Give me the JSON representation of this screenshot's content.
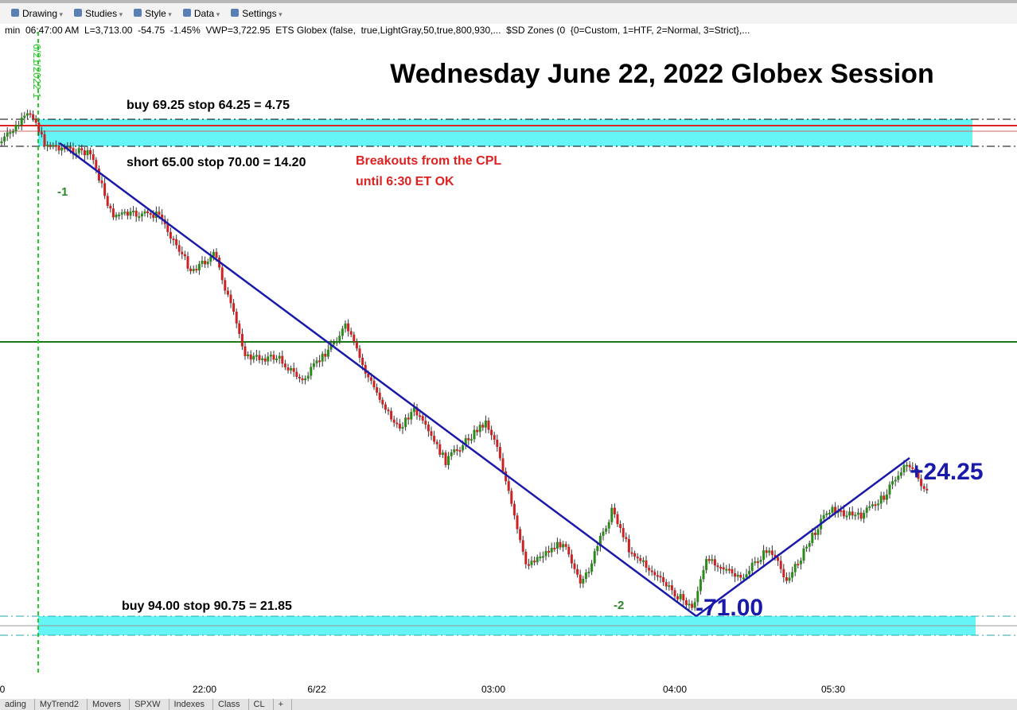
{
  "toolbar": {
    "items": [
      "Drawing",
      "Studies",
      "Style",
      "Data",
      "Settings"
    ]
  },
  "info_line": "min  06:47:00 AM  L=3,713.00  -54.75  -1.45%  VWP=3,722.95  ETS Globex (false,  true,LightGray,50,true,800,930,...  $SD Zones (0  {0=Custom, 1=HTF, 2=Normal, 3=Strict},...",
  "chart": {
    "title": "Wednesday June 22, 2022 Globex Session",
    "date_marker": "6/21/2022 1",
    "annotations": {
      "buy_top": "buy 69.25 stop 64.25 = 4.75",
      "short": "short 65.00 stop 70.00 = 14.20",
      "note_1": "Breakouts from the CPL",
      "note_2": "until 6:30 ET OK",
      "label_1": "-1",
      "label_2": "-2",
      "move_down": "-71.00",
      "move_up": "+24.25",
      "buy_bottom": "buy 94.00 stop 90.75 = 21.85"
    },
    "x_axis_labels": [
      "0",
      "22:00",
      "6/22",
      "03:00",
      "04:00",
      "05:30"
    ]
  },
  "tabs": [
    "ading",
    "MyTrend2",
    "Movers",
    "SPXW",
    "Indexes",
    "Class",
    "CL",
    "+"
  ]
}
